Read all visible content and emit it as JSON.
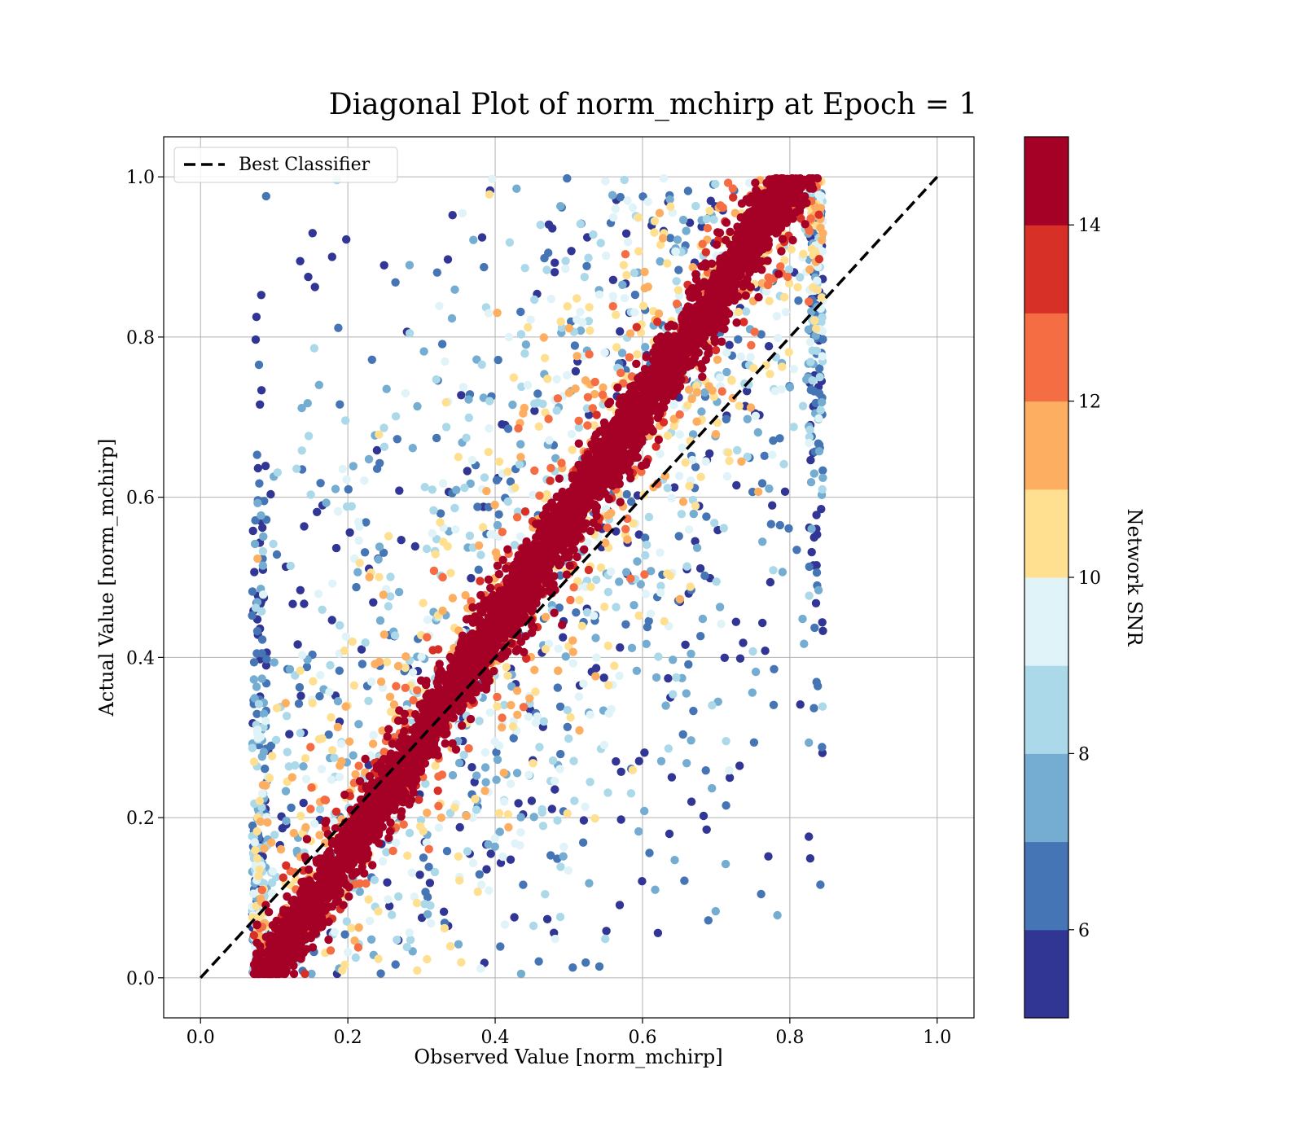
{
  "chart_data": {
    "type": "scatter",
    "title": "Diagonal Plot of norm_mchirp at Epoch = 1",
    "xlabel": "Observed Value [norm_mchirp]",
    "ylabel": "Actual Value [norm_mchirp]",
    "xlim": [
      -0.05,
      1.05
    ],
    "ylim": [
      -0.05,
      1.05
    ],
    "xticks": [
      "0.0",
      "0.2",
      "0.4",
      "0.6",
      "0.8",
      "1.0"
    ],
    "yticks": [
      "0.0",
      "0.2",
      "0.4",
      "0.6",
      "0.8",
      "1.0"
    ],
    "grid": true,
    "legend": {
      "position": "top-left",
      "entries": [
        "Best Classifier"
      ]
    },
    "reference_line": {
      "label": "Best Classifier",
      "x": [
        0.0,
        1.0
      ],
      "y": [
        0.0,
        1.0
      ],
      "style": "dashed",
      "color": "#000000"
    },
    "colorbar": {
      "label": "Network SNR",
      "range": [
        5.0,
        15.0
      ],
      "ticks": [
        "6",
        "8",
        "10",
        "12",
        "14"
      ],
      "tick_values": [
        6,
        8,
        10,
        12,
        14
      ],
      "colors": [
        "#313695",
        "#4575b4",
        "#74add1",
        "#abd9e9",
        "#e0f3f8",
        "#fee090",
        "#fdae61",
        "#f46d43",
        "#d73027",
        "#a50026"
      ]
    },
    "points_summary": {
      "x_range": [
        0.07,
        0.85
      ],
      "y_range": [
        0.0,
        1.0
      ],
      "high_snr_band": "dense dark red band along the diagonal",
      "low_snr_spread": "blue and yellow points spread above and below the diagonal"
    }
  }
}
